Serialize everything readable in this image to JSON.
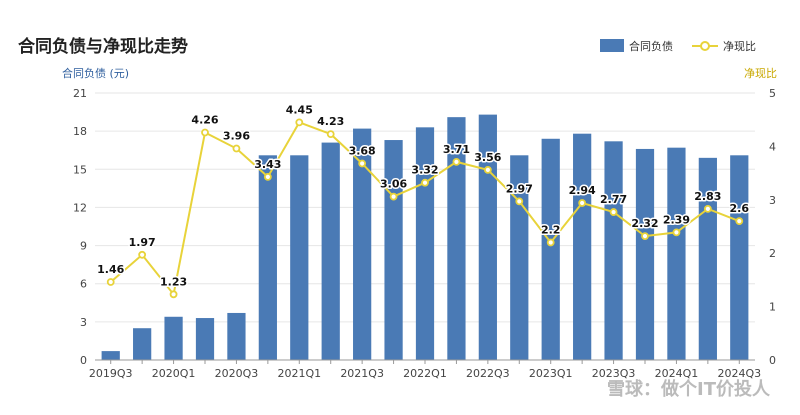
{
  "chart_data": {
    "type": "bar",
    "title": "合同负债与净现比走势",
    "left_axis_label": "合同负债 (元)",
    "right_axis_label": "净现比",
    "legend": [
      "合同负债",
      "净现比"
    ],
    "legend_position": "top-right",
    "categories": [
      "2019Q3",
      "2019Q4",
      "2020Q1",
      "2020Q2",
      "2020Q3",
      "2020Q4",
      "2021Q1",
      "2021Q2",
      "2021Q3",
      "2021Q4",
      "2022Q1",
      "2022Q2",
      "2022Q3",
      "2022Q4",
      "2023Q1",
      "2023Q2",
      "2023Q3",
      "2023Q4",
      "2024Q1",
      "2024Q2",
      "2024Q3"
    ],
    "x_tick_labels": [
      "2019Q3",
      "2020Q1",
      "2020Q3",
      "2021Q1",
      "2021Q3",
      "2022Q1",
      "2022Q3",
      "2023Q1",
      "2023Q3",
      "2024Q1",
      "2024Q3"
    ],
    "series": [
      {
        "name": "合同负债",
        "type": "bar",
        "axis": "left",
        "color": "#4a7ab5",
        "values": [
          0.7,
          2.5,
          3.4,
          3.3,
          3.7,
          16.1,
          16.1,
          17.1,
          18.2,
          17.3,
          18.3,
          19.1,
          19.3,
          16.1,
          17.4,
          17.8,
          17.2,
          16.6,
          16.7,
          15.9,
          16.1
        ]
      },
      {
        "name": "净现比",
        "type": "line",
        "axis": "right",
        "color": "#e8d33a",
        "values": [
          1.46,
          1.97,
          1.23,
          4.26,
          3.96,
          3.43,
          4.45,
          4.23,
          3.68,
          3.06,
          3.32,
          3.71,
          3.56,
          2.97,
          2.2,
          2.94,
          2.77,
          2.32,
          2.39,
          2.83,
          2.6
        ],
        "labels": [
          "1.46",
          "1.97",
          "1.23",
          "4.26",
          "3.96",
          "3.43",
          "4.45",
          "4.23",
          "3.68",
          "3.06",
          "3.32",
          "3.71",
          "3.56",
          "2.97",
          "2.2",
          "2.94",
          "2.77",
          "2.32",
          "2.39",
          "2.83",
          "2.6"
        ]
      }
    ],
    "ylim_left": [
      0,
      21
    ],
    "yticks_left": [
      "0",
      "3",
      "6",
      "9",
      "12",
      "15",
      "18",
      "21"
    ],
    "ylim_right": [
      0,
      5
    ],
    "yticks_right": [
      "0",
      "1",
      "2",
      "3",
      "4",
      "5"
    ],
    "grid": true
  },
  "watermark": "雪球：做个IT价投人",
  "colors": {
    "bar": "#4a7ab5",
    "line": "#e8d33a",
    "left_axis_label": "#2f5f9e",
    "right_axis_label": "#c9a800",
    "grid": "#e6e6e6"
  }
}
